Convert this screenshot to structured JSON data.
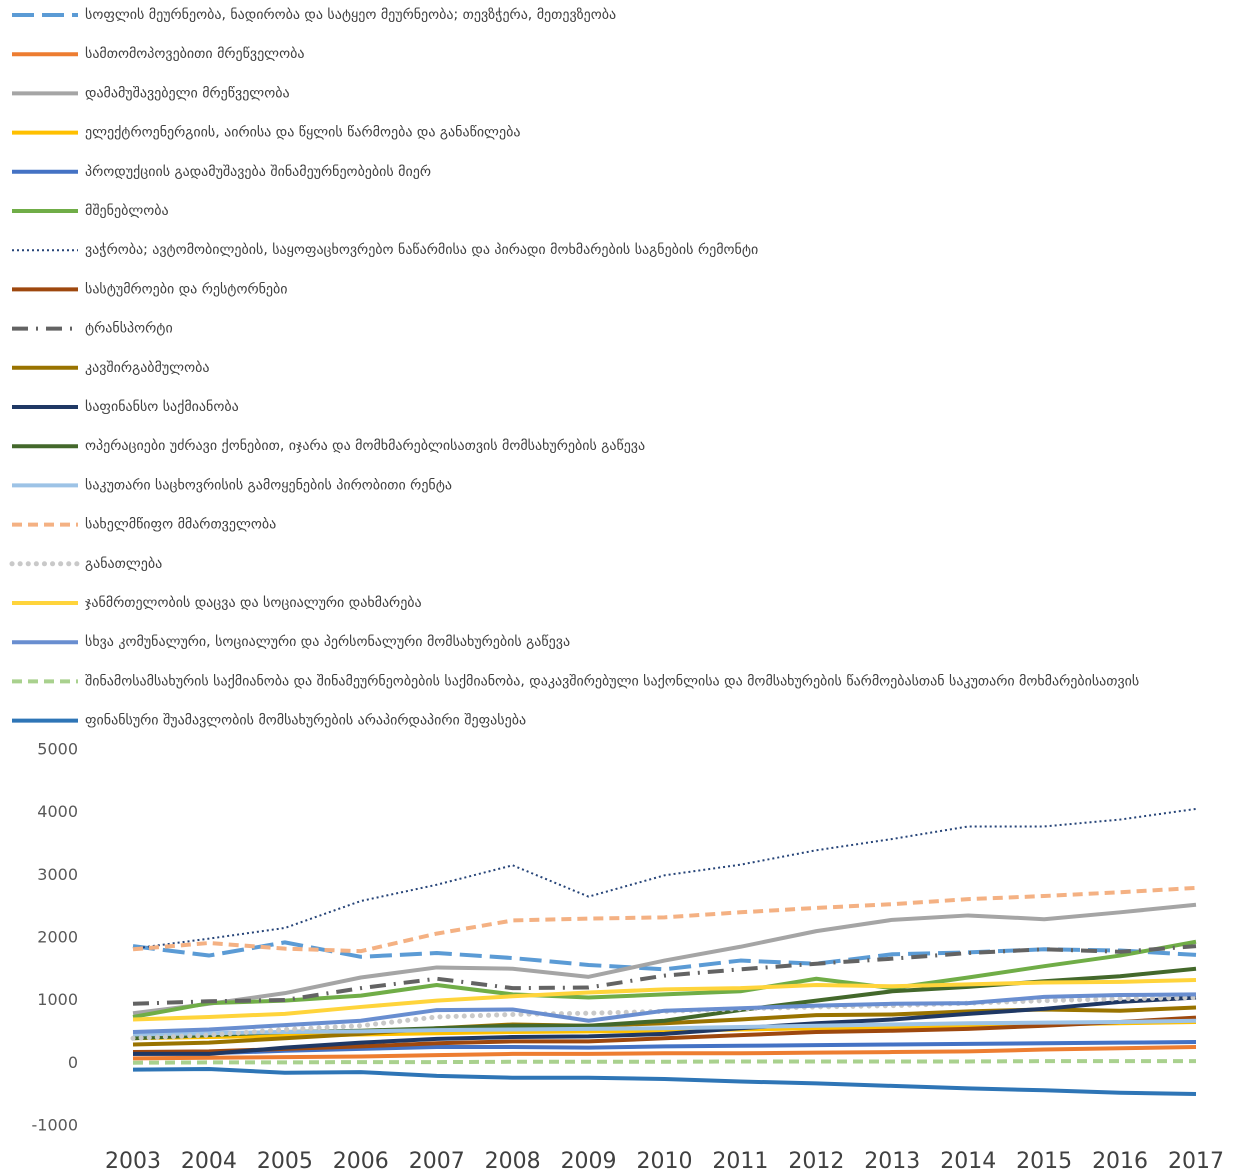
{
  "chart_data": {
    "type": "line",
    "categories": [
      "2003",
      "2004",
      "2005",
      "2006",
      "2007",
      "2008",
      "2009",
      "2010",
      "2011",
      "2012",
      "2013",
      "2014",
      "2015",
      "2016",
      "2017"
    ],
    "ylim": [
      -1000,
      5000
    ],
    "yticks": [
      -1000,
      0,
      1000,
      2000,
      3000,
      4000,
      5000
    ],
    "legend": "top",
    "series": [
      {
        "name": "სოფლის მეურნეობა, ნადირობა და სატყეო მეურნეობა; თევზჭერა, მეთევზეობა",
        "color": "#5B9BD5",
        "dash": "long-dash",
        "values": [
          1870,
          1720,
          1930,
          1700,
          1760,
          1680,
          1570,
          1500,
          1640,
          1590,
          1740,
          1770,
          1820,
          1800,
          1730
        ]
      },
      {
        "name": "სამთომოპოვებითი მრეწველობა",
        "color": "#ED7D31",
        "dash": "solid",
        "values": [
          80,
          90,
          100,
          110,
          130,
          150,
          150,
          160,
          160,
          170,
          180,
          190,
          220,
          240,
          260
        ]
      },
      {
        "name": "დამამუშავებელი მრეწველობა",
        "color": "#A5A5A5",
        "dash": "solid",
        "values": [
          800,
          950,
          1120,
          1370,
          1530,
          1510,
          1380,
          1640,
          1860,
          2110,
          2290,
          2360,
          2300,
          2410,
          2530
        ]
      },
      {
        "name": "ელექტროენერგიის, აირისა და წყლის წარმოება და განაწილება",
        "color": "#FFC000",
        "dash": "solid",
        "values": [
          400,
          420,
          440,
          460,
          480,
          500,
          510,
          520,
          540,
          560,
          580,
          600,
          620,
          640,
          660
        ]
      },
      {
        "name": "პროდუქციის გადამუშავება შინამეურნეობების მიერ",
        "color": "#4472C4",
        "dash": "solid",
        "values": [
          150,
          160,
          200,
          230,
          260,
          260,
          250,
          270,
          280,
          290,
          300,
          310,
          320,
          330,
          340
        ]
      },
      {
        "name": "მშენებლობა",
        "color": "#70AD47",
        "dash": "solid",
        "values": [
          740,
          960,
          1000,
          1080,
          1250,
          1100,
          1050,
          1100,
          1150,
          1350,
          1200,
          1370,
          1550,
          1720,
          1940
        ]
      },
      {
        "name": "ვაჭრობა; ავტომობილების, საყოფაცხოვრებო ნაწარმისა და პირადი მოხმარების საგნების რემონტი",
        "color": "#264478",
        "dash": "dotted",
        "values": [
          1830,
          1990,
          2160,
          2590,
          2850,
          3160,
          2660,
          3000,
          3170,
          3400,
          3580,
          3780,
          3780,
          3890,
          4060
        ]
      },
      {
        "name": "სასტუმროები და რესტორნები",
        "color": "#9E480E",
        "dash": "solid",
        "values": [
          180,
          190,
          230,
          270,
          320,
          350,
          350,
          400,
          450,
          500,
          520,
          550,
          600,
          660,
          730
        ]
      },
      {
        "name": "ტრანსპორტი",
        "color": "#636363",
        "dash": "dash-dot",
        "values": [
          950,
          990,
          1010,
          1200,
          1350,
          1200,
          1210,
          1400,
          1500,
          1590,
          1670,
          1760,
          1820,
          1780,
          1870
        ]
      },
      {
        "name": "კავშირგაბმულობა",
        "color": "#997300",
        "dash": "solid",
        "values": [
          300,
          330,
          400,
          470,
          560,
          620,
          600,
          640,
          700,
          770,
          780,
          830,
          860,
          840,
          890
        ]
      },
      {
        "name": "საფინანსო საქმიანობა",
        "color": "#1F3864",
        "dash": "solid",
        "values": [
          150,
          150,
          250,
          330,
          390,
          420,
          430,
          470,
          560,
          640,
          700,
          790,
          870,
          980,
          1050
        ]
      },
      {
        "name": "ოპერაციები უძრავი ქონებით, იჯარა და მომხმარებლისათვის მომსახურების გაწევა",
        "color": "#43682B",
        "dash": "solid",
        "values": [
          400,
          450,
          500,
          520,
          560,
          600,
          600,
          680,
          850,
          1000,
          1150,
          1220,
          1310,
          1390,
          1510
        ]
      },
      {
        "name": "საკუთარი საცხოვრისის გამოყენების პირობითი რენტა",
        "color": "#9DC3E6",
        "dash": "solid",
        "values": [
          460,
          480,
          500,
          510,
          530,
          540,
          550,
          560,
          580,
          600,
          620,
          640,
          650,
          660,
          680
        ]
      },
      {
        "name": "სახელმწიფო მმართველობა",
        "color": "#F4B183",
        "dash": "dash",
        "values": [
          1820,
          1920,
          1830,
          1790,
          2070,
          2280,
          2310,
          2330,
          2410,
          2480,
          2540,
          2620,
          2670,
          2730,
          2800
        ]
      },
      {
        "name": "განათლება",
        "color": "#C9C9C9",
        "dash": "round-dot",
        "values": [
          400,
          450,
          540,
          600,
          740,
          780,
          800,
          830,
          870,
          900,
          920,
          960,
          1000,
          1030,
          1050
        ]
      },
      {
        "name": "ჯანმრთელობის დაცვა და სოციალური დახმარება",
        "color": "#FFD43B",
        "dash": "solid",
        "values": [
          700,
          740,
          790,
          900,
          1000,
          1070,
          1130,
          1180,
          1200,
          1250,
          1230,
          1260,
          1290,
          1300,
          1330
        ]
      },
      {
        "name": "სხვა კომუნალური, სოციალური და პერსონალური მომსახურების გაწევა",
        "color": "#698ED0",
        "dash": "solid",
        "values": [
          500,
          540,
          610,
          680,
          850,
          860,
          680,
          840,
          880,
          920,
          950,
          960,
          1060,
          1090,
          1100
        ]
      },
      {
        "name": "შინამოსამსახურის საქმიანობა და შინამეურნეობების საქმიანობა, დაკავშირებული საქონლისა და მომსახურების წარმოებასთან საკუთარი მოხმარებისათვის",
        "color": "#A9D18E",
        "dash": "dash",
        "values": [
          10,
          15,
          15,
          20,
          20,
          25,
          25,
          25,
          30,
          30,
          30,
          30,
          35,
          35,
          35
        ]
      },
      {
        "name": "ფინანსური შუამავლობის მომსახურების არაპირდაპირი შეფასება",
        "color": "#2E75B6",
        "dash": "solid",
        "values": [
          -100,
          -90,
          -150,
          -140,
          -200,
          -230,
          -230,
          -250,
          -290,
          -320,
          -360,
          -400,
          -430,
          -470,
          -490
        ]
      }
    ]
  }
}
